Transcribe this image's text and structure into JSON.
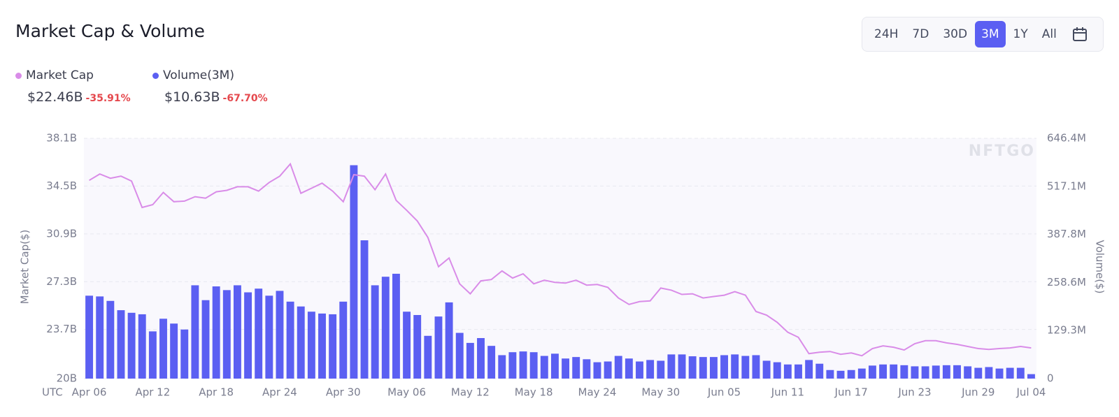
{
  "controls": {
    "ranges": [
      "24H",
      "7D",
      "30D",
      "3M",
      "1Y",
      "All"
    ],
    "active": 3
  },
  "chart_data": {
    "type": "combo",
    "title": "Market Cap & Volume",
    "categories": [
      "Apr 06",
      null,
      null,
      null,
      null,
      null,
      "Apr 12",
      null,
      null,
      null,
      null,
      null,
      "Apr 18",
      null,
      null,
      null,
      null,
      null,
      "Apr 24",
      null,
      null,
      null,
      null,
      null,
      "Apr 30",
      null,
      null,
      null,
      null,
      null,
      "May 06",
      null,
      null,
      null,
      null,
      null,
      "May 12",
      null,
      null,
      null,
      null,
      null,
      "May 18",
      null,
      null,
      null,
      null,
      null,
      "May 24",
      null,
      null,
      null,
      null,
      null,
      "May 30",
      null,
      null,
      null,
      null,
      null,
      "Jun 05",
      null,
      null,
      null,
      null,
      null,
      "Jun 11",
      null,
      null,
      null,
      null,
      null,
      "Jun 17",
      null,
      null,
      null,
      null,
      null,
      "Jun 23",
      null,
      null,
      null,
      null,
      null,
      "Jun 29",
      null,
      null,
      null,
      null,
      "Jul 04"
    ],
    "timezone": "UTC",
    "ylabel": "Market Cap($)",
    "y2label": "Volume($)",
    "watermark": "NFTGO",
    "ylim": [
      20,
      38.1
    ],
    "yticks": [
      {
        "value": 20,
        "label": "20B"
      },
      {
        "value": 23.7,
        "label": "23.7B"
      },
      {
        "value": 27.3,
        "label": "27.3B"
      },
      {
        "value": 30.9,
        "label": "30.9B"
      },
      {
        "value": 34.5,
        "label": "34.5B"
      },
      {
        "value": 38.1,
        "label": "38.1B"
      }
    ],
    "y2lim": [
      0,
      646.4
    ],
    "y2ticks": [
      0,
      {
        "value": 129.3,
        "label": "129.3M"
      },
      {
        "value": 258.6,
        "label": "258.6M"
      },
      {
        "value": 387.8,
        "label": "387.8M"
      },
      {
        "value": 517.1,
        "label": "517.1M"
      },
      {
        "value": 646.4,
        "label": "646.4M"
      }
    ],
    "grid": true,
    "series": [
      {
        "name": "Market Cap",
        "type": "line",
        "color": "#d98ce8",
        "latest": "$22.46B",
        "change": "-35.91%",
        "values": [
          34.93,
          35.41,
          35.09,
          35.25,
          34.88,
          32.89,
          33.1,
          34.02,
          33.32,
          33.37,
          33.7,
          33.59,
          34.07,
          34.18,
          34.45,
          34.45,
          34.12,
          34.77,
          35.25,
          36.17,
          33.96,
          34.34,
          34.72,
          34.12,
          33.32,
          35.36,
          35.25,
          34.23,
          35.41,
          33.43,
          32.67,
          31.87,
          30.63,
          28.43,
          29.08,
          27.14,
          26.39,
          27.36,
          27.46,
          28.11,
          27.57,
          27.89,
          27.14,
          27.41,
          27.25,
          27.2,
          27.41,
          27.04,
          27.09,
          26.87,
          26.07,
          25.59,
          25.8,
          25.85,
          26.82,
          26.66,
          26.34,
          26.39,
          26.07,
          26.18,
          26.28,
          26.55,
          26.28,
          25.05,
          24.78,
          24.24,
          23.49,
          23.11,
          21.88,
          21.99,
          22.04,
          21.83,
          21.93,
          21.72,
          22.26,
          22.47,
          22.36,
          22.15,
          22.63,
          22.85,
          22.85,
          22.69,
          22.58,
          22.42,
          22.26,
          22.2,
          22.26,
          22.31,
          22.42,
          22.31
        ]
      },
      {
        "name": "Volume(3M)",
        "type": "bar",
        "axis": "y2",
        "color": "#5b5ff2",
        "latest": "$10.63B",
        "change": "-67.70%",
        "values": [
          223,
          221,
          209,
          184,
          177,
          173,
          127,
          161,
          148,
          132,
          251,
          211,
          248,
          238,
          251,
          232,
          242,
          223,
          236,
          207,
          194,
          180,
          175,
          173,
          207,
          574,
          372,
          251,
          274,
          282,
          180,
          171,
          115,
          167,
          205,
          123,
          96,
          109,
          88,
          63,
          71,
          73,
          71,
          61,
          67,
          54,
          58,
          52,
          44,
          46,
          61,
          54,
          46,
          50,
          48,
          65,
          65,
          60,
          58,
          58,
          63,
          65,
          61,
          63,
          48,
          44,
          38,
          38,
          50,
          40,
          23,
          21,
          23,
          27,
          35,
          38,
          38,
          36,
          33,
          33,
          35,
          36,
          36,
          33,
          29,
          31,
          27,
          29,
          29,
          12
        ]
      }
    ]
  }
}
